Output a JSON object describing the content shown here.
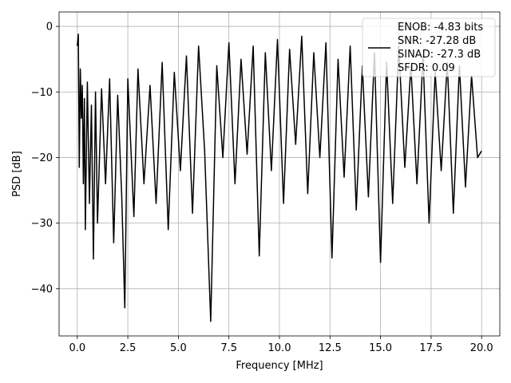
{
  "chart_data": {
    "type": "line",
    "title": "",
    "xlabel": "Frequency [MHz]",
    "ylabel": "PSD [dB]",
    "xlim": [
      -0.9,
      20.9
    ],
    "ylim": [
      -47.2,
      2.2
    ],
    "xticks": [
      0.0,
      2.5,
      5.0,
      7.5,
      10.0,
      12.5,
      15.0,
      17.5,
      20.0
    ],
    "xtick_labels": [
      "0.0",
      "2.5",
      "5.0",
      "7.5",
      "10.0",
      "12.5",
      "15.0",
      "17.5",
      "20.0"
    ],
    "yticks": [
      0,
      -10,
      -20,
      -30,
      -40
    ],
    "ytick_labels": [
      "0",
      "−10",
      "−20",
      "−30",
      "−40"
    ],
    "grid": true,
    "legend_position": "top-right",
    "series": [
      {
        "name": "",
        "color": "#000000",
        "x": [
          0.0,
          0.05,
          0.1,
          0.15,
          0.2,
          0.25,
          0.3,
          0.35,
          0.4,
          0.5,
          0.6,
          0.7,
          0.8,
          0.9,
          1.0,
          1.2,
          1.4,
          1.6,
          1.8,
          2.0,
          2.2,
          2.35,
          2.5,
          2.8,
          3.0,
          3.3,
          3.6,
          3.9,
          4.2,
          4.5,
          4.8,
          5.1,
          5.4,
          5.7,
          6.0,
          6.3,
          6.6,
          6.9,
          7.2,
          7.5,
          7.8,
          8.1,
          8.4,
          8.7,
          9.0,
          9.3,
          9.6,
          9.9,
          10.2,
          10.5,
          10.8,
          11.1,
          11.4,
          11.7,
          12.0,
          12.3,
          12.6,
          12.9,
          13.2,
          13.5,
          13.8,
          14.1,
          14.4,
          14.7,
          15.0,
          15.3,
          15.6,
          15.9,
          16.2,
          16.5,
          16.8,
          17.1,
          17.4,
          17.7,
          18.0,
          18.3,
          18.6,
          18.9,
          19.2,
          19.5,
          19.8,
          20.0
        ],
        "y": [
          -3.0,
          -1.2,
          -21.5,
          -6.5,
          -14.0,
          -9.0,
          -24.0,
          -11.0,
          -31.0,
          -8.5,
          -27.0,
          -12.0,
          -35.5,
          -10.0,
          -30.0,
          -9.5,
          -24.0,
          -8.0,
          -33.0,
          -10.5,
          -26.0,
          -42.9,
          -8.0,
          -29.0,
          -6.5,
          -24.0,
          -9.0,
          -27.0,
          -5.5,
          -31.0,
          -7.0,
          -22.0,
          -4.5,
          -28.5,
          -3.0,
          -19.0,
          -45.0,
          -6.0,
          -20.0,
          -2.5,
          -24.0,
          -5.0,
          -19.5,
          -3.0,
          -35.0,
          -4.0,
          -22.0,
          -2.0,
          -27.0,
          -3.5,
          -18.0,
          -1.5,
          -25.5,
          -4.0,
          -20.0,
          -2.5,
          -35.3,
          -5.0,
          -23.0,
          -3.0,
          -28.0,
          -6.0,
          -26.0,
          -4.0,
          -36.0,
          -5.5,
          -27.0,
          -3.0,
          -21.5,
          -6.0,
          -24.0,
          -4.5,
          -30.0,
          -7.0,
          -22.0,
          -5.5,
          -28.5,
          -6.0,
          -24.5,
          -7.5,
          -20.0,
          -19.0
        ]
      }
    ],
    "legend_lines": [
      "ENOB: -4.83 bits",
      "SNR: -27.28 dB",
      "SINAD: -27.3 dB",
      "SFDR: 0.09"
    ]
  }
}
